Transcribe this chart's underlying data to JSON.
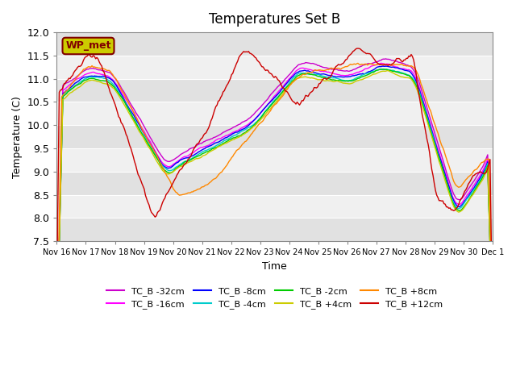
{
  "title": "Temperatures Set B",
  "xlabel": "Time",
  "ylabel": "Temperature (C)",
  "ylim": [
    7.5,
    12.0
  ],
  "yticks": [
    7.5,
    8.0,
    8.5,
    9.0,
    9.5,
    10.0,
    10.5,
    11.0,
    11.5,
    12.0
  ],
  "xtick_labels": [
    "Nov 16",
    "Nov 17",
    "Nov 18",
    "Nov 19",
    "Nov 20",
    "Nov 21",
    "Nov 22",
    "Nov 23",
    "Nov 24",
    "Nov 25",
    "Nov 26",
    "Nov 27",
    "Nov 28",
    "Nov 29",
    "Nov 30",
    "Dec 1"
  ],
  "series": [
    {
      "label": "TC_B -32cm",
      "color": "#CC00CC"
    },
    {
      "label": "TC_B -16cm",
      "color": "#FF00FF"
    },
    {
      "label": "TC_B -8cm",
      "color": "#0000FF"
    },
    {
      "label": "TC_B -4cm",
      "color": "#00CCCC"
    },
    {
      "label": "TC_B -2cm",
      "color": "#00CC00"
    },
    {
      "label": "TC_B +4cm",
      "color": "#CCCC00"
    },
    {
      "label": "TC_B +8cm",
      "color": "#FF8800"
    },
    {
      "label": "TC_B +12cm",
      "color": "#CC0000"
    }
  ],
  "wp_met_box_color": "#CCCC00",
  "wp_met_text_color": "#800000",
  "plot_bg_color": "#F0F0F0"
}
